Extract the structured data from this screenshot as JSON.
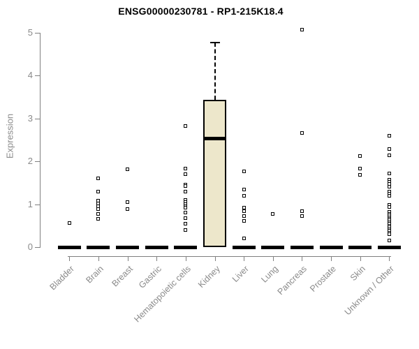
{
  "title": "ENSG00000230781 - RP1-215K18.4",
  "colors": {
    "box_fill": "#ede7cb",
    "box_stroke": "#000000",
    "axis": "#7f7f7f",
    "tick_label": "#8a8a8a",
    "title": "#000000",
    "point": "#000000"
  },
  "chart_data": {
    "type": "box",
    "title": "ENSG00000230781 - RP1-215K18.4",
    "xlabel": "",
    "ylabel": "Expression",
    "ylim": [
      0,
      5
    ],
    "yticks": [
      0,
      1,
      2,
      3,
      4,
      5
    ],
    "grid": false,
    "legend": "none",
    "marker": "open-square",
    "categories": [
      "Bladder",
      "Brain",
      "Breast",
      "Gastric",
      "Hematopoietic cells",
      "Kidney",
      "Liver",
      "Lung",
      "Pancreas",
      "Prostate",
      "Skin",
      "Unknown / Other"
    ],
    "series": [
      {
        "category": "Bladder",
        "box": {
          "whisker_low": 0,
          "q1": 0,
          "median": 0,
          "q3": 0,
          "whisker_high": 0
        },
        "points": [
          0.56
        ]
      },
      {
        "category": "Brain",
        "box": {
          "whisker_low": 0,
          "q1": 0,
          "median": 0,
          "q3": 0,
          "whisker_high": 0
        },
        "points": [
          1.61,
          1.3,
          1.08,
          1.01,
          0.95,
          0.88,
          0.77,
          0.66
        ]
      },
      {
        "category": "Breast",
        "box": {
          "whisker_low": 0,
          "q1": 0,
          "median": 0,
          "q3": 0,
          "whisker_high": 0
        },
        "points": [
          1.82,
          1.05,
          0.88
        ]
      },
      {
        "category": "Gastric",
        "box": {
          "whisker_low": 0,
          "q1": 0,
          "median": 0,
          "q3": 0,
          "whisker_high": 0
        },
        "points": []
      },
      {
        "category": "Hematopoietic cells",
        "box": {
          "whisker_low": 0,
          "q1": 0,
          "median": 0,
          "q3": 0,
          "whisker_high": 0
        },
        "points": [
          2.82,
          1.83,
          1.7,
          1.46,
          1.42,
          1.3,
          1.1,
          1.05,
          1.0,
          0.96,
          0.92,
          0.81,
          0.67,
          0.55,
          0.4
        ]
      },
      {
        "category": "Kidney",
        "box": {
          "whisker_low": 0,
          "q1": 0,
          "median": 2.54,
          "q3": 3.43,
          "whisker_high": 4.78
        },
        "points": []
      },
      {
        "category": "Liver",
        "box": {
          "whisker_low": 0,
          "q1": 0,
          "median": 0,
          "q3": 0,
          "whisker_high": 0
        },
        "points": [
          1.76,
          1.34,
          1.2,
          0.92,
          0.84,
          0.73,
          0.61,
          0.2
        ]
      },
      {
        "category": "Lung",
        "box": {
          "whisker_low": 0,
          "q1": 0,
          "median": 0,
          "q3": 0,
          "whisker_high": 0
        },
        "points": [
          0.78
        ]
      },
      {
        "category": "Pancreas",
        "box": {
          "whisker_low": 0,
          "q1": 0,
          "median": 0,
          "q3": 0,
          "whisker_high": 0
        },
        "points": [
          5.08,
          2.67,
          0.84,
          0.73
        ]
      },
      {
        "category": "Prostate",
        "box": {
          "whisker_low": 0,
          "q1": 0,
          "median": 0,
          "q3": 0,
          "whisker_high": 0
        },
        "points": []
      },
      {
        "category": "Skin",
        "box": {
          "whisker_low": 0,
          "q1": 0,
          "median": 0,
          "q3": 0,
          "whisker_high": 0
        },
        "points": [
          2.12,
          1.84,
          1.68
        ]
      },
      {
        "category": "Unknown / Other",
        "box": {
          "whisker_low": 0,
          "q1": 0,
          "median": 0,
          "q3": 0,
          "whisker_high": 0
        },
        "points": [
          2.6,
          2.29,
          2.14,
          1.72,
          1.57,
          1.52,
          1.47,
          1.41,
          1.29,
          1.24,
          1.2,
          0.99,
          0.94,
          0.83,
          0.78,
          0.74,
          0.7,
          0.66,
          0.62,
          0.58,
          0.54,
          0.5,
          0.46,
          0.42,
          0.38,
          0.34,
          0.3,
          0.15
        ]
      }
    ]
  }
}
